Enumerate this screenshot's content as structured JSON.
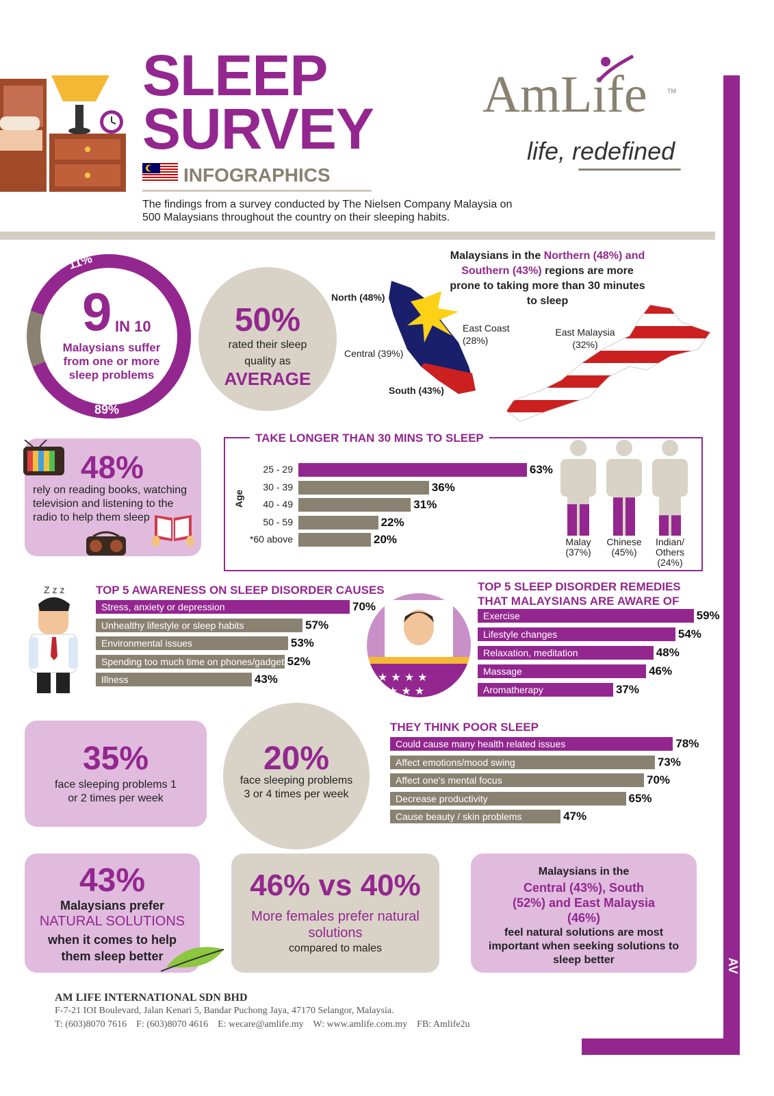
{
  "header": {
    "title_line1": "SLEEP",
    "title_line2": "SURVEY",
    "subtitle": "INFOGRAPHICS",
    "intro": "The findings from a survey conducted by The Nielsen Company Malaysia on 500 Malaysians throughout the country on their sleeping habits.",
    "brand": "AmLife",
    "brand_tm": "TM",
    "tagline": "life, redefined"
  },
  "colors": {
    "purple": "#93278f",
    "gray": "#8a8271",
    "pink": "#e0bbde",
    "beige": "#d9d3c7"
  },
  "nine_in_ten": {
    "big": "9",
    "in10": "IN 10",
    "text": "Malaysians suffer from one or more sleep problems",
    "pct_small": "11%",
    "pct_large": "89%",
    "value_pct": 89
  },
  "fifty": {
    "big": "50%",
    "text": "rated their sleep quality as",
    "emph": "AVERAGE"
  },
  "map": {
    "headline_a": "Malaysians in the ",
    "headline_b": "Northern (48%) and Southern (43%)",
    "headline_c": " regions are more prone to taking more than 30 minutes to sleep",
    "north": "North (48%)",
    "east_coast": "East Coast (28%)",
    "central": "Central (39%)",
    "south": "South (43%)",
    "east_malaysia": "East Malaysia (32%)"
  },
  "media": {
    "big": "48%",
    "text": "rely on reading books, watching television and listening to the radio to help them sleep"
  },
  "chart_data": [
    {
      "type": "bar",
      "title": "TAKE LONGER THAN 30 MINS TO SLEEP",
      "ylabel": "Age",
      "categories": [
        "25 - 29",
        "30 - 39",
        "40 - 49",
        "50 - 59",
        "*60 above"
      ],
      "values": [
        63,
        36,
        31,
        22,
        20
      ],
      "value_labels": [
        "63%",
        "36%",
        "31%",
        "22%",
        "20%"
      ]
    },
    {
      "type": "bar",
      "categories": [
        "Malay",
        "Chinese",
        "Indian/ Others"
      ],
      "values": [
        37,
        45,
        24
      ],
      "value_labels": [
        "(37%)",
        "(45%)",
        "(24%)"
      ]
    },
    {
      "type": "bar",
      "title": "TOP 5 AWARENESS ON SLEEP DISORDER CAUSES",
      "categories": [
        "Stress, anxiety or depression",
        "Unhealthy lifestyle or sleep habits",
        "Environmental issues",
        "Spending too much time on phones/gadgets",
        "Illness"
      ],
      "values": [
        70,
        57,
        53,
        52,
        43
      ],
      "value_labels": [
        "70%",
        "57%",
        "53%",
        "52%",
        "43%"
      ]
    },
    {
      "type": "bar",
      "title": "TOP 5 SLEEP DISORDER REMEDIES THAT MALAYSIANS ARE AWARE OF",
      "categories": [
        "Exercise",
        "Lifestyle changes",
        "Relaxation, meditation",
        "Massage",
        "Aromatherapy"
      ],
      "values": [
        59,
        54,
        48,
        46,
        37
      ],
      "value_labels": [
        "59%",
        "54%",
        "48%",
        "46%",
        "37%"
      ]
    },
    {
      "type": "bar",
      "title": "THEY THINK POOR SLEEP",
      "categories": [
        "Could cause many health related issues",
        "Affect emotions/mood swing",
        "Affect one's mental focus",
        "Decrease productivity",
        "Cause beauty / skin problems"
      ],
      "values": [
        78,
        73,
        70,
        65,
        47
      ],
      "value_labels": [
        "78%",
        "73%",
        "70%",
        "65%",
        "47%"
      ]
    }
  ],
  "freq1": {
    "big": "35%",
    "text": "face sleeping problems 1 or 2 times per week"
  },
  "freq2": {
    "big": "20%",
    "text": "face sleeping problems 3 or 4 times per week"
  },
  "natural": {
    "big": "43%",
    "line1": "Malaysians prefer",
    "emph": "NATURAL SOLUTIONS",
    "line2": "when it comes to help them sleep better"
  },
  "gender": {
    "big": "46% vs 40%",
    "emph": "More females prefer natural solutions",
    "line": "compared to males"
  },
  "regions": {
    "line1": "Malaysians in the",
    "emph": "Central (43%), South (52%) and East Malaysia (46%)",
    "line2": "feel natural solutions are most important when seeking solutions to sleep better"
  },
  "footer": {
    "company": "AM LIFE INTERNATIONAL SDN BHD",
    "address": "F-7-21 IOI Boulevard, Jalan Kenari 5, Bandar Puchong Jaya, 47170 Selangor, Malaysia.",
    "contacts": "T: (603)8070 7616    F: (603)8070 4616    E: wecare@amlife.my    W: www.amlife.com.my    FB: Amlife2u"
  }
}
